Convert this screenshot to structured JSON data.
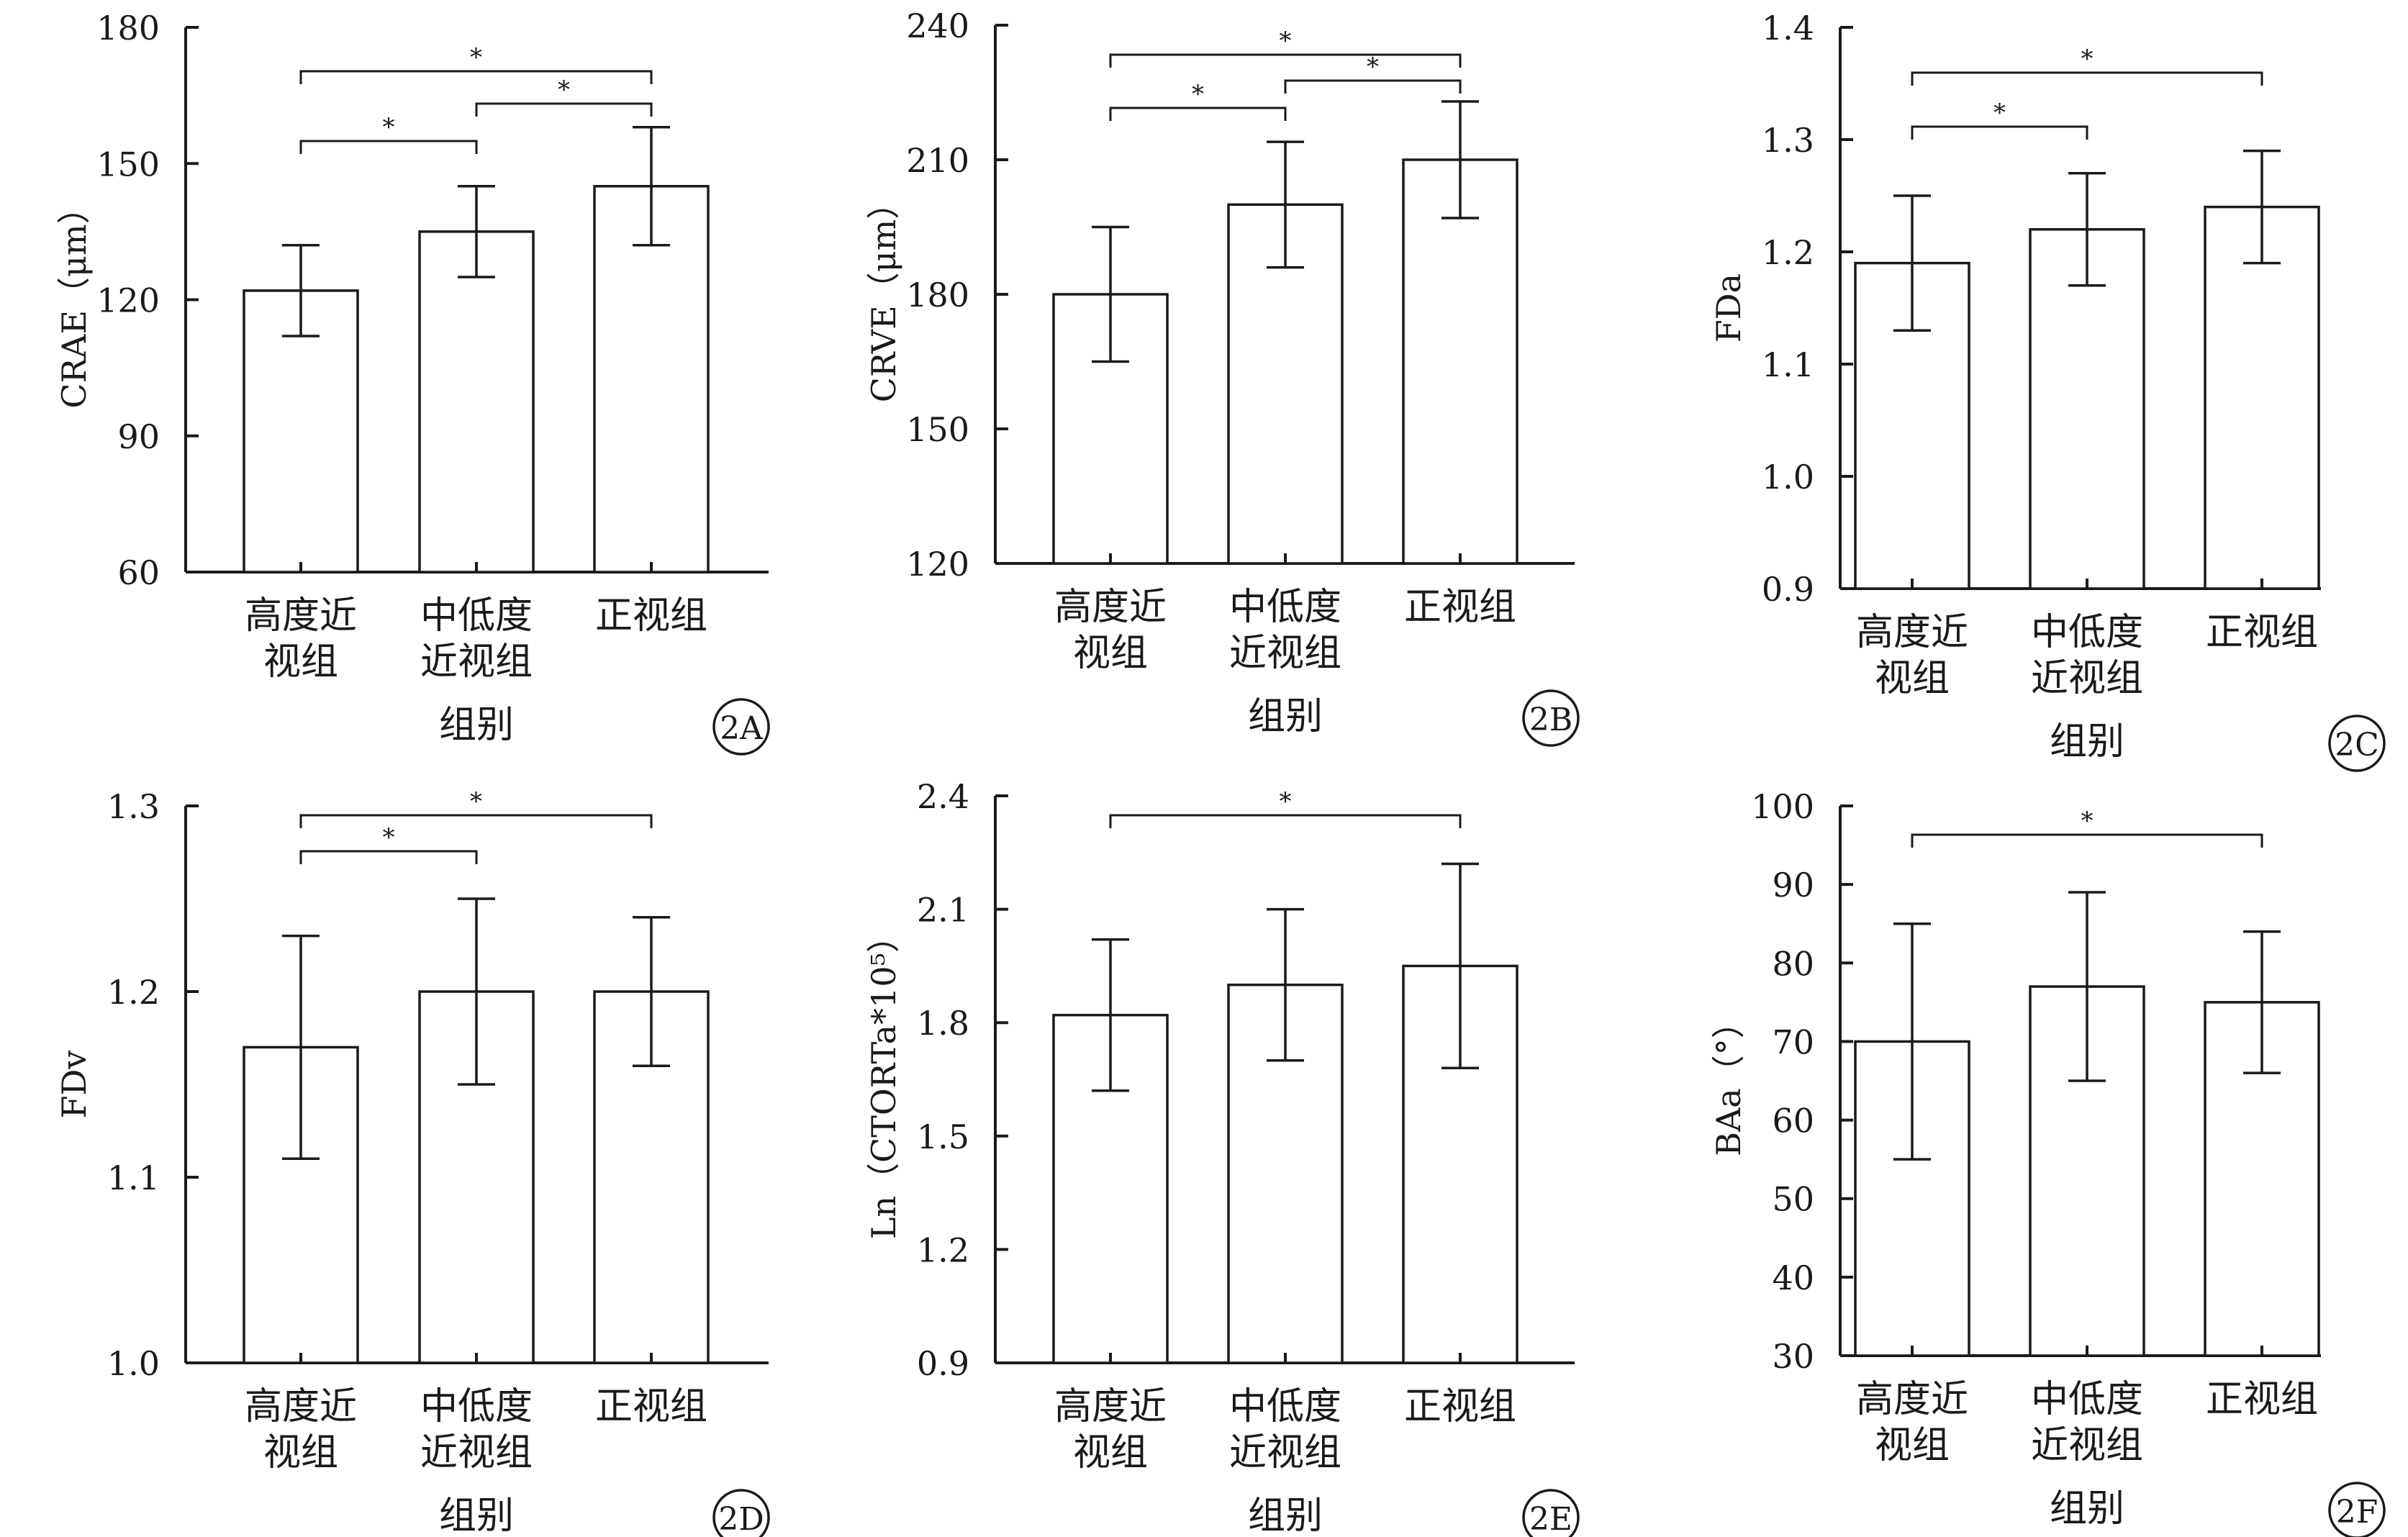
{
  "chart_data": [
    {
      "type": "bar",
      "panel_label": "2A",
      "categories": [
        [
          "高度近",
          "视组"
        ],
        [
          "中低度",
          "近视组"
        ],
        [
          "正视组"
        ]
      ],
      "values": [
        122,
        135,
        145
      ],
      "errors": [
        10,
        10,
        13
      ],
      "ylabel": "CRAE（μm）",
      "xlabel": "组别",
      "ylim": [
        60,
        180
      ],
      "yticks": [
        "60",
        "90",
        "120",
        "150",
        "180"
      ],
      "significance": [
        {
          "from": 0,
          "to": 2,
          "label": "*"
        },
        {
          "from": 0,
          "to": 1,
          "label": "*"
        },
        {
          "from": 1,
          "to": 2,
          "label": "*"
        }
      ]
    },
    {
      "type": "bar",
      "panel_label": "2B",
      "categories": [
        [
          "高度近",
          "视组"
        ],
        [
          "中低度",
          "近视组"
        ],
        [
          "正视组"
        ]
      ],
      "values": [
        180,
        200,
        210
      ],
      "errors": [
        15,
        14,
        13
      ],
      "ylabel": "CRVE（μm）",
      "xlabel": "组别",
      "ylim": [
        120,
        240
      ],
      "yticks": [
        "120",
        "150",
        "180",
        "210",
        "240"
      ],
      "significance": [
        {
          "from": 0,
          "to": 2,
          "label": "*"
        },
        {
          "from": 0,
          "to": 1,
          "label": "*"
        },
        {
          "from": 1,
          "to": 2,
          "label": "*"
        }
      ]
    },
    {
      "type": "bar",
      "panel_label": "2C",
      "categories": [
        [
          "高度近",
          "视组"
        ],
        [
          "中低度",
          "近视组"
        ],
        [
          "正视组"
        ]
      ],
      "values": [
        1.19,
        1.22,
        1.24
      ],
      "errors": [
        0.06,
        0.05,
        0.05
      ],
      "ylabel": "FDa",
      "xlabel": "组别",
      "ylim": [
        0.9,
        1.4
      ],
      "yticks": [
        "0.9",
        "1.0",
        "1.1",
        "1.2",
        "1.3",
        "1.4"
      ],
      "significance": [
        {
          "from": 0,
          "to": 2,
          "label": "*"
        },
        {
          "from": 0,
          "to": 1,
          "label": "*"
        }
      ]
    },
    {
      "type": "bar",
      "panel_label": "2D",
      "categories": [
        [
          "高度近",
          "视组"
        ],
        [
          "中低度",
          "近视组"
        ],
        [
          "正视组"
        ]
      ],
      "values": [
        1.17,
        1.2,
        1.2
      ],
      "errors": [
        0.06,
        0.05,
        0.04
      ],
      "ylabel": "FDv",
      "xlabel": "组别",
      "ylim": [
        1.0,
        1.3
      ],
      "yticks": [
        "1.0",
        "1.1",
        "1.2",
        "1.3"
      ],
      "significance": [
        {
          "from": 0,
          "to": 2,
          "label": "*"
        },
        {
          "from": 0,
          "to": 1,
          "label": "*"
        }
      ]
    },
    {
      "type": "bar",
      "panel_label": "2E",
      "categories": [
        [
          "高度近",
          "视组"
        ],
        [
          "中低度",
          "近视组"
        ],
        [
          "正视组"
        ]
      ],
      "values": [
        1.82,
        1.9,
        1.95
      ],
      "errors": [
        0.2,
        0.2,
        0.27
      ],
      "ylabel": "Ln（CTORTa*10⁵）",
      "xlabel": "组别",
      "ylim": [
        0.9,
        2.4
      ],
      "yticks": [
        "0.9",
        "1.2",
        "1.5",
        "1.8",
        "2.1",
        "2.4"
      ],
      "significance": [
        {
          "from": 0,
          "to": 2,
          "label": "*"
        }
      ]
    },
    {
      "type": "bar",
      "panel_label": "2F",
      "categories": [
        [
          "高度近",
          "视组"
        ],
        [
          "中低度",
          "近视组"
        ],
        [
          "正视组"
        ]
      ],
      "values": [
        70,
        77,
        75
      ],
      "errors": [
        15,
        12,
        9
      ],
      "ylabel": "BAa（°）",
      "xlabel": "组别",
      "ylim": [
        30,
        100
      ],
      "yticks": [
        "30",
        "40",
        "50",
        "60",
        "70",
        "80",
        "90",
        "100"
      ],
      "significance": [
        {
          "from": 0,
          "to": 2,
          "label": "*"
        }
      ]
    }
  ]
}
